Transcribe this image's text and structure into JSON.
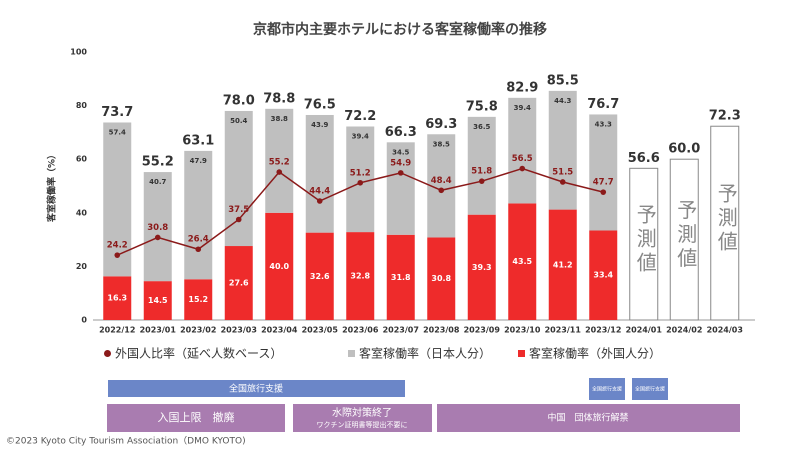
{
  "chart_data": {
    "type": "bar",
    "title": "京都市内主要ホテルにおける客室稼働率の推移",
    "y_label": "客室稼働率（%）",
    "categories": [
      "2022/12",
      "2023/01",
      "2023/02",
      "2023/03",
      "2023/04",
      "2023/05",
      "2023/06",
      "2023/07",
      "2023/08",
      "2023/09",
      "2023/10",
      "2023/11",
      "2023/12",
      "2024/01",
      "2024/02",
      "2024/03"
    ],
    "ylim": [
      0,
      100
    ],
    "yticks": [
      0,
      20,
      40,
      60,
      80,
      100
    ],
    "grid": false,
    "series": [
      {
        "name": "客室稼働率（外国人分）",
        "color": "#ee2b2b",
        "values": [
          16.3,
          14.5,
          15.2,
          27.6,
          40.0,
          32.6,
          32.8,
          31.8,
          30.8,
          39.3,
          43.5,
          41.2,
          33.4,
          null,
          null,
          null
        ],
        "value_labels": [
          "16.3",
          "14.5",
          "15.2",
          "27.6",
          "40.0",
          "32.6",
          "32.8",
          "31.8",
          "30.8",
          "39.3",
          "43.5",
          "41.2",
          "33.4",
          null,
          null,
          null
        ]
      },
      {
        "name": "客室稼働率（日本人分）",
        "color": "#bfbfbf",
        "values": [
          57.4,
          40.7,
          47.9,
          50.4,
          38.8,
          43.9,
          39.4,
          34.5,
          38.5,
          36.5,
          39.4,
          44.3,
          43.3,
          null,
          null,
          null
        ]
      },
      {
        "name": "外国人比率（延べ人数ベース）",
        "type": "line",
        "color": "#8b1a1a",
        "values": [
          24.2,
          30.8,
          26.4,
          37.5,
          55.2,
          44.4,
          51.2,
          54.9,
          48.4,
          51.8,
          56.5,
          51.5,
          47.7,
          null,
          null,
          null
        ]
      }
    ],
    "totals": [
      73.7,
      55.2,
      63.1,
      78.0,
      78.8,
      76.5,
      72.2,
      66.3,
      69.3,
      75.8,
      82.9,
      85.5,
      76.7,
      null,
      null,
      null
    ],
    "totals_labels": [
      "73.7",
      "55.2",
      "63.1",
      "78.0",
      "78.8",
      "76.5",
      "72.2",
      "66.3",
      "69.3",
      "75.8",
      "82.9",
      "85.5",
      "76.7",
      null,
      null,
      null
    ],
    "forecast": {
      "label": "予測値",
      "values": [
        null,
        null,
        null,
        null,
        null,
        null,
        null,
        null,
        null,
        null,
        null,
        null,
        null,
        56.6,
        60.0,
        72.3
      ],
      "value_labels": [
        null,
        null,
        null,
        null,
        null,
        null,
        null,
        null,
        null,
        null,
        null,
        null,
        null,
        "56.6",
        "60.0",
        "72.3"
      ]
    },
    "annotations": [
      "全国旅行支援",
      "全国旅行支援",
      "全国旅行支援",
      "入国上限　撤廃",
      "水際対策終了",
      "ワクチン証明書等提出不要に",
      "中国　団体旅行解禁"
    ],
    "footer": "©2023 Kyoto City Tourism Association（DMO KYOTO)"
  }
}
